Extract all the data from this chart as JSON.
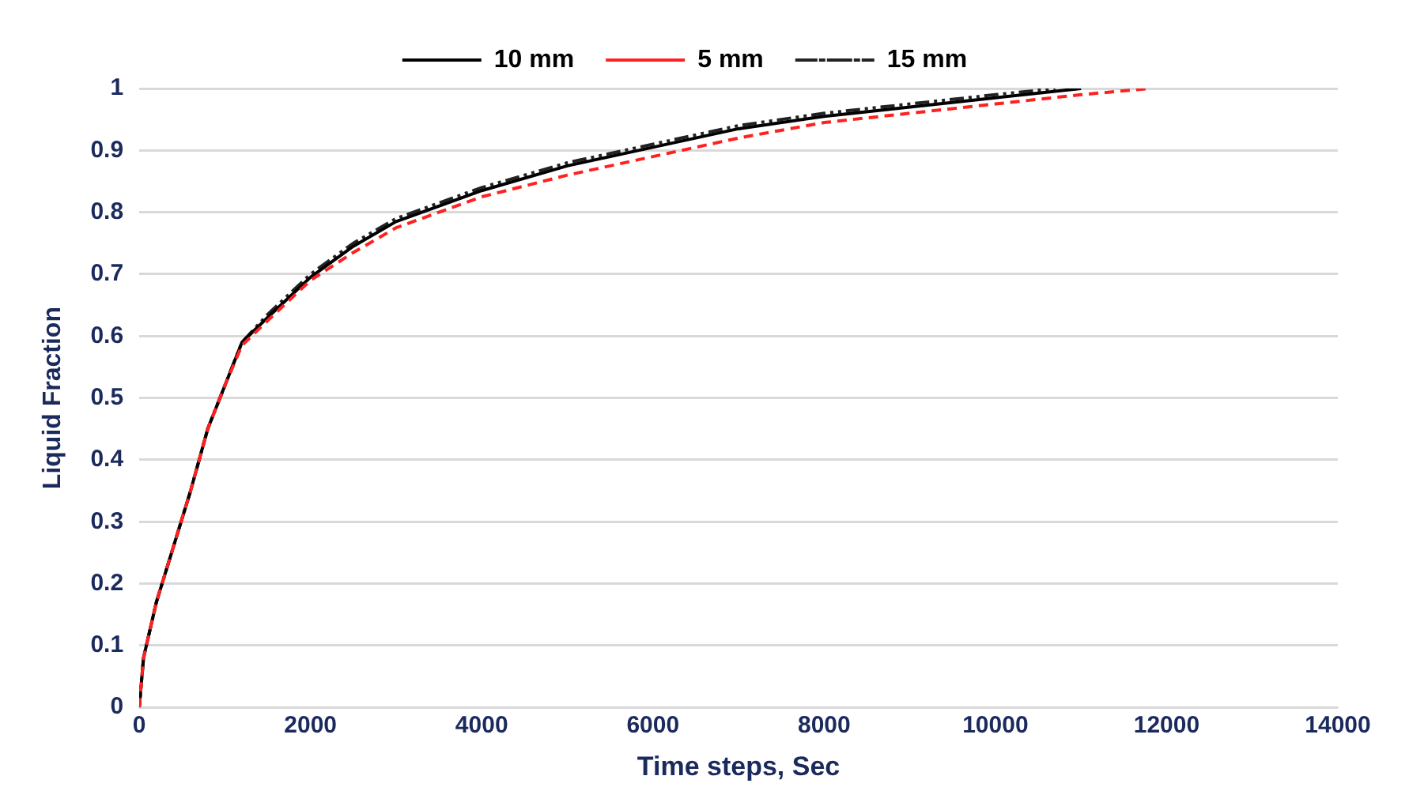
{
  "chart_data": {
    "type": "line",
    "xlabel": "Time steps, Sec",
    "ylabel": "Liquid Fraction",
    "xlim": [
      0,
      14000
    ],
    "xticks": [
      0,
      2000,
      4000,
      6000,
      8000,
      10000,
      12000,
      14000
    ],
    "ylim": [
      0,
      1
    ],
    "yticks": [
      0,
      0.1,
      0.2,
      0.3,
      0.4,
      0.5,
      0.6,
      0.7,
      0.8,
      0.9,
      1
    ],
    "grid": "y",
    "legend": "top",
    "marker": "none",
    "series": [
      {
        "name": "10 mm",
        "color": "#000000",
        "line_style": "solid",
        "x": [
          0,
          50,
          200,
          400,
          600,
          800,
          1000,
          1200,
          1500,
          2000,
          2500,
          3000,
          4000,
          5000,
          6000,
          7000,
          8000,
          9000,
          10000,
          11000
        ],
        "values": [
          0,
          0.08,
          0.17,
          0.26,
          0.35,
          0.45,
          0.52,
          0.59,
          0.63,
          0.695,
          0.745,
          0.785,
          0.835,
          0.875,
          0.905,
          0.935,
          0.955,
          0.97,
          0.985,
          1
        ]
      },
      {
        "name": "5 mm",
        "color": "#ff2020",
        "line_style": "dashed",
        "x": [
          0,
          50,
          200,
          400,
          600,
          800,
          1000,
          1200,
          1500,
          2000,
          2500,
          3000,
          4000,
          5000,
          6000,
          7000,
          8000,
          9000,
          10000,
          11000,
          11800
        ],
        "values": [
          0,
          0.08,
          0.17,
          0.26,
          0.35,
          0.45,
          0.52,
          0.585,
          0.625,
          0.69,
          0.735,
          0.775,
          0.825,
          0.86,
          0.89,
          0.92,
          0.945,
          0.96,
          0.975,
          0.99,
          1
        ]
      },
      {
        "name": "15 mm",
        "color": "#222222",
        "line_style": "dashdot",
        "x": [
          0,
          50,
          200,
          400,
          600,
          800,
          1000,
          1200,
          1500,
          2000,
          2500,
          3000,
          4000,
          5000,
          6000,
          7000,
          8000,
          9000,
          10000,
          10700
        ],
        "values": [
          0,
          0.08,
          0.17,
          0.26,
          0.35,
          0.45,
          0.52,
          0.59,
          0.635,
          0.7,
          0.75,
          0.79,
          0.84,
          0.88,
          0.91,
          0.94,
          0.96,
          0.975,
          0.99,
          1
        ]
      }
    ]
  }
}
